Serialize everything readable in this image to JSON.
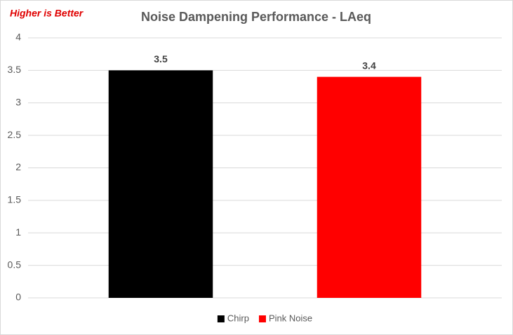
{
  "chart_data": {
    "type": "bar",
    "title": "Noise Dampening Performance - LAeq",
    "annotation": "Higher is Better",
    "categories": [
      null
    ],
    "series": [
      {
        "name": "Chirp",
        "color": "#000000",
        "values": [
          3.5
        ]
      },
      {
        "name": "Pink Noise",
        "color": "#ff0000",
        "values": [
          3.4
        ]
      }
    ],
    "ylim": [
      0,
      4
    ],
    "yticks": [
      0,
      0.5,
      1,
      1.5,
      2,
      2.5,
      3,
      3.5,
      4
    ],
    "grid": true,
    "legend": "bottom"
  }
}
